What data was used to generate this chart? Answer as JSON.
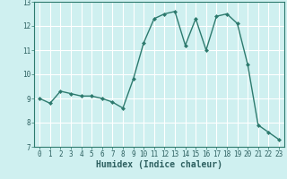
{
  "xlabel": "Humidex (Indice chaleur)",
  "x": [
    0,
    1,
    2,
    3,
    4,
    5,
    6,
    7,
    8,
    9,
    10,
    11,
    12,
    13,
    14,
    15,
    16,
    17,
    18,
    19,
    20,
    21,
    22,
    23
  ],
  "y": [
    9.0,
    8.8,
    9.3,
    9.2,
    9.1,
    9.1,
    9.0,
    8.85,
    8.6,
    9.8,
    11.3,
    12.3,
    12.5,
    12.6,
    11.2,
    12.3,
    11.0,
    12.4,
    12.5,
    12.1,
    10.4,
    7.9,
    7.6,
    7.3
  ],
  "line_color": "#2d7a6e",
  "marker": "D",
  "marker_size": 2,
  "bg_color": "#cff0f0",
  "grid_color": "#ffffff",
  "ylim": [
    7,
    13
  ],
  "xlim": [
    -0.5,
    23.5
  ],
  "yticks": [
    7,
    8,
    9,
    10,
    11,
    12,
    13
  ],
  "xticks": [
    0,
    1,
    2,
    3,
    4,
    5,
    6,
    7,
    8,
    9,
    10,
    11,
    12,
    13,
    14,
    15,
    16,
    17,
    18,
    19,
    20,
    21,
    22,
    23
  ],
  "tick_fontsize": 5.5,
  "xlabel_fontsize": 7,
  "linewidth": 1.0
}
